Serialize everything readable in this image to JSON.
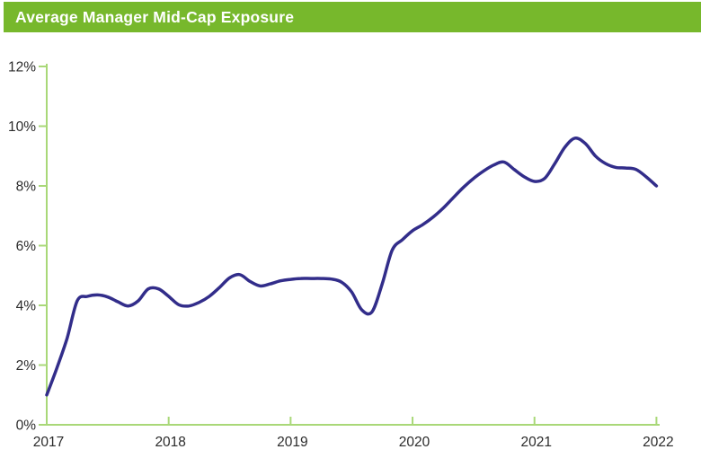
{
  "header": {
    "title": "Average Manager Mid-Cap Exposure",
    "background_color": "#77b82c",
    "text_color": "#ffffff"
  },
  "chart_data": {
    "type": "line",
    "title": "Average Manager Mid-Cap Exposure",
    "xlabel": "",
    "ylabel": "",
    "grid": false,
    "legend": "none",
    "xlim": [
      2017,
      2022
    ],
    "ylim": [
      0,
      12
    ],
    "x_tick_values": [
      2017,
      2018,
      2019,
      2020,
      2021,
      2022
    ],
    "x_tick_labels": [
      "2017",
      "2018",
      "2019",
      "2020",
      "2021",
      "2022"
    ],
    "y_tick_values": [
      0,
      2,
      4,
      6,
      8,
      10,
      12
    ],
    "y_tick_labels": [
      "0%",
      "2%",
      "4%",
      "6%",
      "8%",
      "10%",
      "12%"
    ],
    "line_color": "#322d8a",
    "axis_color": "#a9d878",
    "label_color": "#2b2b2b",
    "series": [
      {
        "name": "Average Manager Mid-Cap Exposure",
        "x": [
          2017.0,
          2017.083,
          2017.167,
          2017.25,
          2017.333,
          2017.417,
          2017.5,
          2017.583,
          2017.667,
          2017.75,
          2017.833,
          2017.917,
          2018.0,
          2018.083,
          2018.167,
          2018.25,
          2018.333,
          2018.417,
          2018.5,
          2018.583,
          2018.667,
          2018.75,
          2018.833,
          2018.917,
          2019.0,
          2019.083,
          2019.167,
          2019.25,
          2019.333,
          2019.417,
          2019.5,
          2019.583,
          2019.667,
          2019.75,
          2019.833,
          2019.917,
          2020.0,
          2020.083,
          2020.167,
          2020.25,
          2020.333,
          2020.417,
          2020.5,
          2020.583,
          2020.667,
          2020.75,
          2020.833,
          2020.917,
          2021.0,
          2021.083,
          2021.167,
          2021.25,
          2021.333,
          2021.417,
          2021.5,
          2021.583,
          2021.667,
          2021.75,
          2021.833,
          2021.917,
          2022.0
        ],
        "values": [
          1.0,
          1.9,
          2.9,
          4.15,
          4.3,
          4.35,
          4.28,
          4.12,
          3.98,
          4.15,
          4.55,
          4.55,
          4.3,
          4.02,
          3.98,
          4.1,
          4.3,
          4.6,
          4.92,
          5.03,
          4.8,
          4.65,
          4.72,
          4.82,
          4.87,
          4.9,
          4.9,
          4.9,
          4.88,
          4.78,
          4.45,
          3.85,
          3.78,
          4.7,
          5.85,
          6.2,
          6.5,
          6.7,
          6.95,
          7.25,
          7.6,
          7.95,
          8.25,
          8.5,
          8.7,
          8.8,
          8.55,
          8.3,
          8.15,
          8.25,
          8.75,
          9.3,
          9.6,
          9.42,
          9.0,
          8.75,
          8.62,
          8.6,
          8.55,
          8.3,
          8.0
        ]
      }
    ]
  }
}
